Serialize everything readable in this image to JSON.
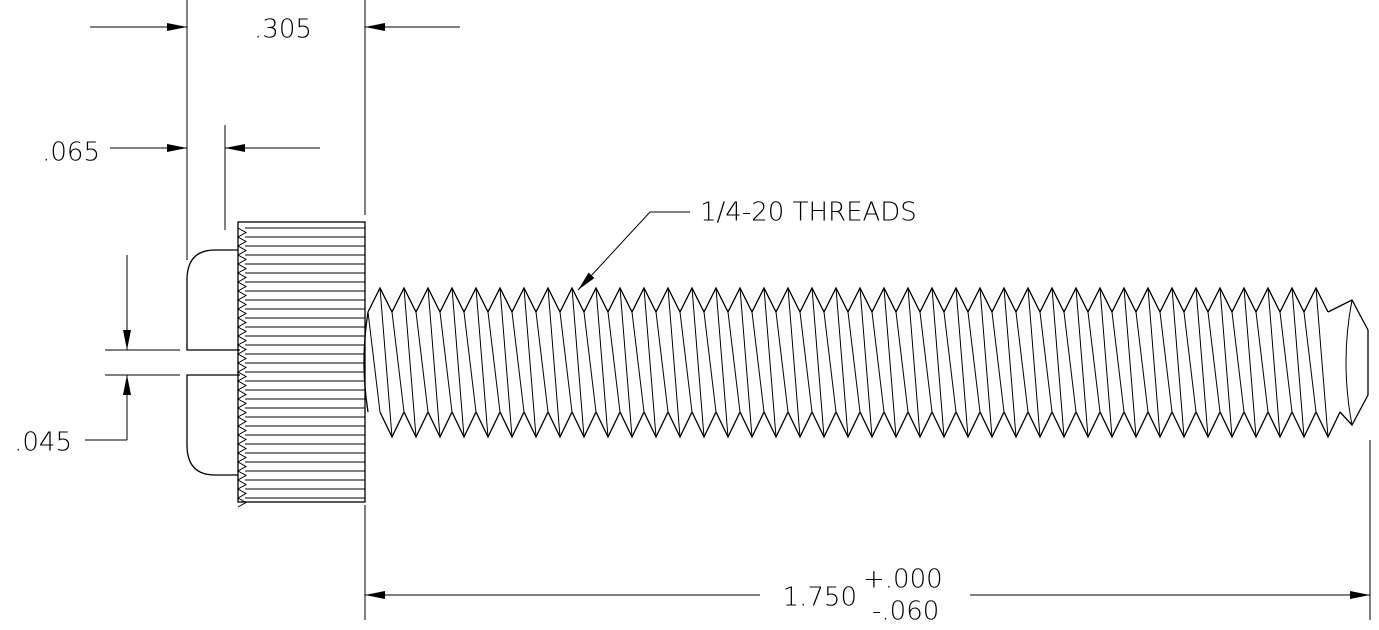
{
  "dimensions": {
    "head_length": ".305",
    "dome_length": ".065",
    "slot_width": ".045"
  },
  "callout": "1/4-20 THREADS",
  "length": {
    "nominal": "1.750",
    "plus": "+.000",
    "minus": "-.060"
  }
}
